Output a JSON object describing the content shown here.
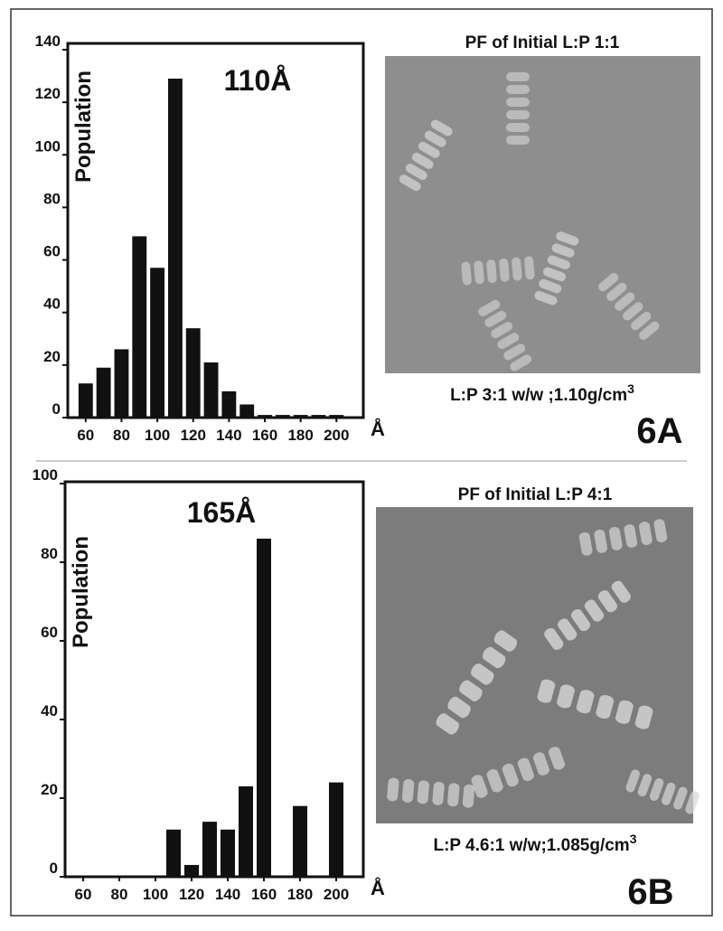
{
  "chart_data": [
    {
      "type": "bar",
      "panel_label": "6A",
      "ylabel": "Population",
      "xlabel": "Å",
      "annotation": "110Å",
      "image_title": "PF of Initial L:P 1:1",
      "image_caption": "L:P 3:1 w/w ;1.10g/cm",
      "image_caption_sup": "3",
      "x": [
        60,
        70,
        80,
        90,
        100,
        110,
        120,
        130,
        140,
        150,
        160,
        170,
        180,
        190,
        200
      ],
      "values": [
        13,
        19,
        26,
        69,
        57,
        129,
        34,
        21,
        10,
        5,
        1,
        1,
        1,
        1,
        1
      ],
      "color": "#111111",
      "xlim": [
        50,
        215
      ],
      "ylim": [
        0,
        140
      ],
      "xticks": [
        60,
        80,
        100,
        120,
        140,
        160,
        180,
        200
      ],
      "yticks": [
        0,
        20,
        40,
        60,
        80,
        100,
        120,
        140
      ]
    },
    {
      "type": "bar",
      "panel_label": "6B",
      "ylabel": "Population",
      "xlabel": "Å",
      "annotation": "165Å",
      "image_title": "PF of Initial L:P 4:1",
      "image_caption": "L:P 4.6:1 w/w;1.085g/cm",
      "image_caption_sup": "3",
      "x": [
        110,
        120,
        130,
        140,
        150,
        160,
        180,
        200
      ],
      "values": [
        12,
        3,
        14,
        12,
        23,
        86,
        18,
        24
      ],
      "color": "#111111",
      "xlim": [
        50,
        215
      ],
      "ylim": [
        0,
        100
      ],
      "xticks": [
        60,
        80,
        100,
        120,
        140,
        160,
        180,
        200
      ],
      "yticks": [
        0,
        20,
        40,
        60,
        80,
        100
      ]
    }
  ]
}
